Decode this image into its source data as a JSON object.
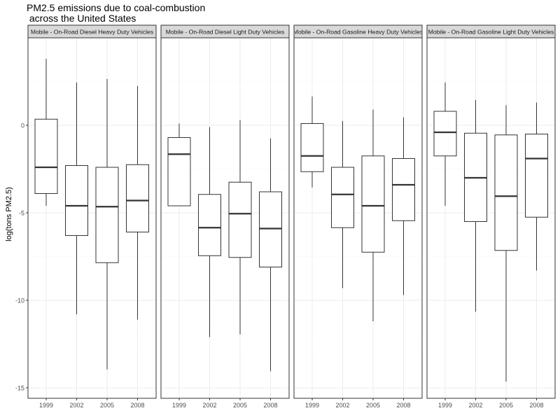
{
  "chart_data": {
    "type": "boxplot",
    "title_lines": [
      "PM2.5 emissions due to coal-combustion",
      " across the United States"
    ],
    "xlabel": "",
    "ylabel": "log(tons PM2.5)",
    "ylim": [
      -15.6,
      5.0
    ],
    "y_ticks": [
      0,
      -5,
      -10,
      -15
    ],
    "y_tick_labels": [
      "0",
      "-5",
      "-10",
      "-15"
    ],
    "x_categories": [
      "1999",
      "2002",
      "2005",
      "2008"
    ],
    "grid": true,
    "panels": [
      {
        "label": "Mobile - On-Road Diesel Heavy Duty Vehicles",
        "boxes": [
          {
            "x": "1999",
            "min": -4.6,
            "q1": -3.9,
            "median": -2.4,
            "q3": 0.35,
            "max": 3.8
          },
          {
            "x": "2002",
            "min": -10.8,
            "q1": -6.3,
            "median": -4.6,
            "q3": -2.3,
            "max": 2.45
          },
          {
            "x": "2005",
            "min": -13.95,
            "q1": -7.85,
            "median": -4.65,
            "q3": -2.4,
            "max": 2.65
          },
          {
            "x": "2008",
            "min": -11.1,
            "q1": -6.1,
            "median": -4.3,
            "q3": -2.25,
            "max": 2.25
          }
        ]
      },
      {
        "label": "Mobile - On-Road Diesel Light Duty Vehicles",
        "boxes": [
          {
            "x": "1999",
            "min": -4.6,
            "q1": -4.6,
            "median": -1.65,
            "q3": -0.7,
            "max": 0.1
          },
          {
            "x": "2002",
            "min": -12.1,
            "q1": -7.45,
            "median": -5.85,
            "q3": -3.95,
            "max": -0.1
          },
          {
            "x": "2005",
            "min": -11.95,
            "q1": -7.55,
            "median": -5.05,
            "q3": -3.25,
            "max": 0.3
          },
          {
            "x": "2008",
            "min": -14.05,
            "q1": -8.1,
            "median": -5.9,
            "q3": -3.8,
            "max": -0.75
          }
        ]
      },
      {
        "label": "Mobile - On-Road Gasoline Heavy Duty Vehicles",
        "boxes": [
          {
            "x": "1999",
            "min": -3.55,
            "q1": -2.65,
            "median": -1.75,
            "q3": 0.1,
            "max": 1.65
          },
          {
            "x": "2002",
            "min": -9.3,
            "q1": -5.85,
            "median": -3.95,
            "q3": -2.4,
            "max": 0.25
          },
          {
            "x": "2005",
            "min": -11.2,
            "q1": -7.25,
            "median": -4.6,
            "q3": -1.75,
            "max": 0.9
          },
          {
            "x": "2008",
            "min": -9.7,
            "q1": -5.45,
            "median": -3.4,
            "q3": -1.9,
            "max": 0.45
          }
        ]
      },
      {
        "label": "Mobile - On-Road Gasoline Light Duty Vehicles",
        "boxes": [
          {
            "x": "1999",
            "min": -4.6,
            "q1": -1.75,
            "median": -0.4,
            "q3": 0.8,
            "max": 2.45
          },
          {
            "x": "2002",
            "min": -10.65,
            "q1": -5.5,
            "median": -3.0,
            "q3": -0.45,
            "max": 1.45
          },
          {
            "x": "2005",
            "min": -14.65,
            "q1": -7.15,
            "median": -4.05,
            "q3": -0.55,
            "max": 1.15
          },
          {
            "x": "2008",
            "min": -8.3,
            "q1": -5.25,
            "median": -1.9,
            "q3": -0.5,
            "max": 1.3
          }
        ]
      }
    ]
  },
  "colors": {
    "panel_background": "#ffffff",
    "panel_border": "#333333",
    "strip_background": "#d9d9d9",
    "grid_major": "#ebebeb",
    "grid_minor": "#f5f5f5",
    "box_stroke": "#333333",
    "text": "#000000",
    "tick_text": "#4d4d4d"
  }
}
